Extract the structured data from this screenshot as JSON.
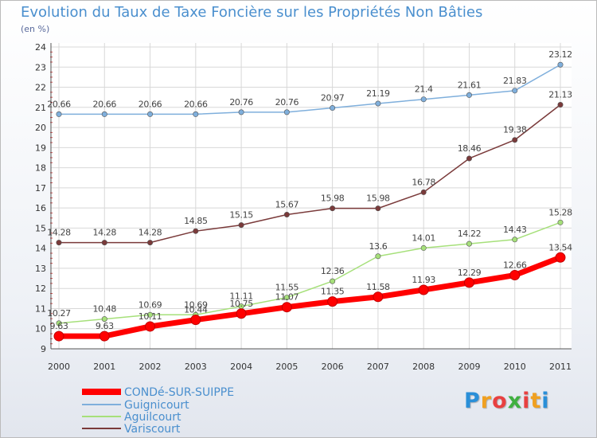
{
  "chart_data": {
    "type": "line",
    "title": "Evolution du Taux de Taxe Foncière sur les Propriétés Non Bâties",
    "subtitle": "(en %)",
    "xlabel": "",
    "ylabel": "",
    "x": [
      "2000",
      "2001",
      "2002",
      "2003",
      "2004",
      "2005",
      "2006",
      "2007",
      "2008",
      "2009",
      "2010",
      "2011"
    ],
    "ylim": [
      9,
      24
    ],
    "yticks": [
      "9",
      "10",
      "11",
      "12",
      "13",
      "14",
      "15",
      "16",
      "17",
      "18",
      "19",
      "20",
      "21",
      "22",
      "23",
      "24"
    ],
    "grid": true,
    "legend": "bottom-left",
    "series": [
      {
        "name": "CONDé-SUR-SUIPPE",
        "color": "#ff0000",
        "values": [
          9.63,
          9.63,
          10.11,
          10.44,
          10.75,
          11.07,
          11.35,
          11.58,
          11.93,
          12.29,
          12.66,
          13.54
        ],
        "labels": [
          "9.63",
          "9.63",
          "10.11",
          "10.44",
          "10.75",
          "11.07",
          "11.35",
          "11.58",
          "11.93",
          "12.29",
          "12.66",
          "13.54"
        ]
      },
      {
        "name": "Guignicourt",
        "color": "#7fafdc",
        "values": [
          20.66,
          20.66,
          20.66,
          20.66,
          20.76,
          20.76,
          20.97,
          21.19,
          21.4,
          21.61,
          21.83,
          23.12
        ],
        "labels": [
          "20.66",
          "20.66",
          "20.66",
          "20.66",
          "20.76",
          "20.76",
          "20.97",
          "21.19",
          "21.4",
          "21.61",
          "21.83",
          "23.12"
        ]
      },
      {
        "name": "Aguilcourt",
        "color": "#a6e07a",
        "values": [
          10.27,
          10.48,
          10.69,
          10.69,
          11.11,
          11.55,
          12.36,
          13.6,
          14.01,
          14.22,
          14.43,
          15.28
        ],
        "labels": [
          "10.27",
          "10.48",
          "10.69",
          "10.69",
          "11.11",
          "11.55",
          "12.36",
          "13.6",
          "14.01",
          "14.22",
          "14.43",
          "15.28"
        ]
      },
      {
        "name": "Variscourt",
        "color": "#7a3a3a",
        "values": [
          14.28,
          14.28,
          14.28,
          14.85,
          15.15,
          15.67,
          15.98,
          15.98,
          16.78,
          18.46,
          19.38,
          21.13
        ],
        "labels": [
          "14.28",
          "14.28",
          "14.28",
          "14.85",
          "15.15",
          "15.67",
          "15.98",
          "15.98",
          "16.78",
          "18.46",
          "19.38",
          "21.13"
        ]
      }
    ]
  },
  "logo": {
    "letters": [
      "P",
      "r",
      "o",
      "x",
      "i",
      "t",
      "i"
    ],
    "colors": [
      "#2a8fd8",
      "#f0a020",
      "#e84040",
      "#40b040",
      "#e84040",
      "#f0a020",
      "#2a8fd8"
    ]
  }
}
